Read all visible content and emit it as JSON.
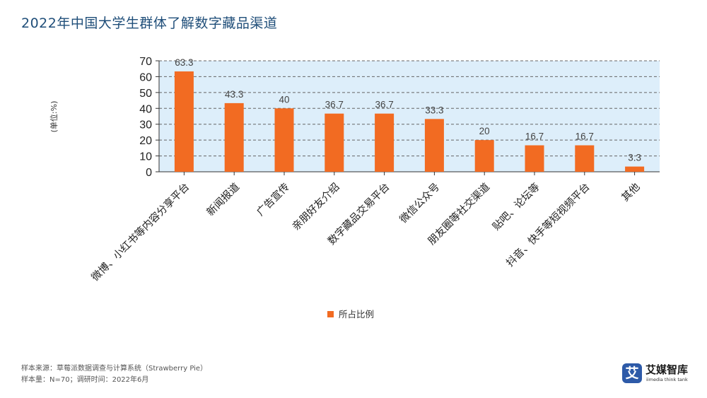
{
  "title": "2022年中国大学生群体了解数字藏品渠道",
  "chart_data": {
    "type": "bar",
    "categories": [
      "微博、小红书等内容分享平台",
      "新闻报道",
      "广告宣传",
      "亲朋好友介绍",
      "数字藏品交易平台",
      "微信公众号",
      "朋友圈等社交渠道",
      "贴吧、论坛等",
      "抖音、快手等短视频平台",
      "其他"
    ],
    "series": [
      {
        "name": "所占比例",
        "values": [
          63.3,
          43.3,
          40,
          36.7,
          36.7,
          33.3,
          20,
          16.7,
          16.7,
          3.3
        ]
      }
    ],
    "data_labels": [
      "63.3",
      "43.3",
      "40",
      "36.7",
      "36.7",
      "33.3",
      "20",
      "16.7",
      "16.7",
      "3.3"
    ],
    "ylabel": "(单位:%)",
    "ylim": [
      0,
      70
    ],
    "yticks": [
      "0",
      "10",
      "20",
      "30",
      "40",
      "50",
      "60",
      "70"
    ],
    "grid": true,
    "legend_position": "bottom",
    "bar_color": "#f26b22",
    "plot_background": "#ddeefa",
    "gridline_color": "#666666"
  },
  "footer": {
    "line1": "样本来源：草莓派数据调查与计算系统（Strawberry Pie）",
    "line2": "样本量：N=70；调研时间：2022年6月"
  },
  "logo": {
    "mark": "艾",
    "name": "艾媒智库",
    "subtitle": "iimedia think tank"
  }
}
